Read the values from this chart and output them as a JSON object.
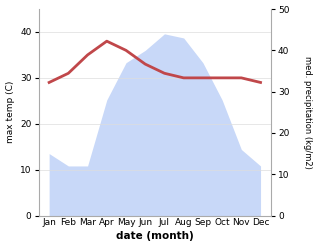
{
  "months": [
    "Jan",
    "Feb",
    "Mar",
    "Apr",
    "May",
    "Jun",
    "Jul",
    "Aug",
    "Sep",
    "Oct",
    "Nov",
    "Dec"
  ],
  "temp": [
    29,
    31,
    35,
    38,
    36,
    33,
    31,
    30,
    30,
    30,
    30,
    29
  ],
  "precip": [
    15,
    12,
    12,
    28,
    37,
    40,
    44,
    43,
    37,
    28,
    16,
    12
  ],
  "temp_color": "#c0474a",
  "precip_fill_color": "#c8d8f8",
  "left_ylim": [
    0,
    45
  ],
  "right_ylim": [
    0,
    50
  ],
  "left_yticks": [
    0,
    10,
    20,
    30,
    40
  ],
  "right_yticks": [
    0,
    10,
    20,
    30,
    40,
    50
  ],
  "xlabel": "date (month)",
  "ylabel_left": "max temp (C)",
  "ylabel_right": "med. precipitation (kg/m2)",
  "figsize": [
    3.18,
    2.47
  ],
  "dpi": 100
}
